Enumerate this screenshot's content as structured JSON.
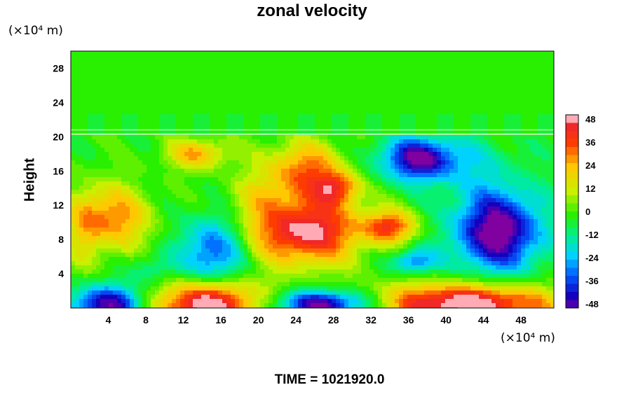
{
  "chart_data": {
    "type": "heatmap",
    "title": "zonal velocity",
    "ylabel": "Height",
    "y_unit": "(×10⁴ m)",
    "x_unit": "(×10⁴ m)",
    "footer": "TIME = 1021920.0",
    "xlim": [
      0,
      51.5
    ],
    "ylim": [
      0,
      30
    ],
    "x_ticks": [
      4,
      8,
      12,
      16,
      20,
      24,
      28,
      32,
      36,
      40,
      44,
      48
    ],
    "y_ticks": [
      4,
      8,
      12,
      16,
      20,
      24,
      28
    ],
    "colorbar": {
      "min": -48,
      "max": 48,
      "tick_labels": [
        48,
        36,
        24,
        12,
        0,
        -12,
        -24,
        -36,
        -48
      ]
    },
    "upper_layer_value": -2,
    "interface_height": 20.3,
    "features": [
      {
        "x": 25.0,
        "y": 9.0,
        "rx": 6.0,
        "ry": 4.0,
        "value": 50
      },
      {
        "x": 25.0,
        "y": 16.0,
        "rx": 4.5,
        "ry": 3.5,
        "value": 32
      },
      {
        "x": 28.5,
        "y": 14.0,
        "rx": 2.5,
        "ry": 2.0,
        "value": 28
      },
      {
        "x": 34.0,
        "y": 9.5,
        "rx": 3.0,
        "ry": 2.0,
        "value": 35
      },
      {
        "x": 4.5,
        "y": 10.5,
        "rx": 4.0,
        "ry": 3.8,
        "value": 30
      },
      {
        "x": 1.5,
        "y": 9.5,
        "rx": 2.0,
        "ry": 5.0,
        "value": 14
      },
      {
        "x": 13.5,
        "y": 18.0,
        "rx": 3.5,
        "ry": 1.8,
        "value": 26
      },
      {
        "x": 14.5,
        "y": 0.5,
        "rx": 6.0,
        "ry": 2.8,
        "value": 55
      },
      {
        "x": 42.0,
        "y": 0.5,
        "rx": 10.0,
        "ry": 2.4,
        "value": 55
      },
      {
        "x": 45.5,
        "y": 9.0,
        "rx": 5.0,
        "ry": 5.0,
        "value": -52
      },
      {
        "x": 37.0,
        "y": 17.5,
        "rx": 4.0,
        "ry": 2.5,
        "value": -36
      },
      {
        "x": 40.0,
        "y": 17.0,
        "rx": 8.0,
        "ry": 3.5,
        "value": -14
      },
      {
        "x": 15.0,
        "y": 6.5,
        "rx": 3.5,
        "ry": 4.5,
        "value": -32
      },
      {
        "x": 4.0,
        "y": 0.5,
        "rx": 4.5,
        "ry": 2.2,
        "value": -45
      },
      {
        "x": 27.0,
        "y": 0.5,
        "rx": 5.5,
        "ry": 1.6,
        "value": -50
      },
      {
        "x": 36.5,
        "y": 5.5,
        "rx": 2.5,
        "ry": 1.5,
        "value": -28
      },
      {
        "x": 19.5,
        "y": 13.0,
        "rx": 3.5,
        "ry": 3.0,
        "value": 10
      },
      {
        "x": 8.5,
        "y": 4.5,
        "rx": 2.5,
        "ry": 2.0,
        "value": -12
      }
    ]
  }
}
